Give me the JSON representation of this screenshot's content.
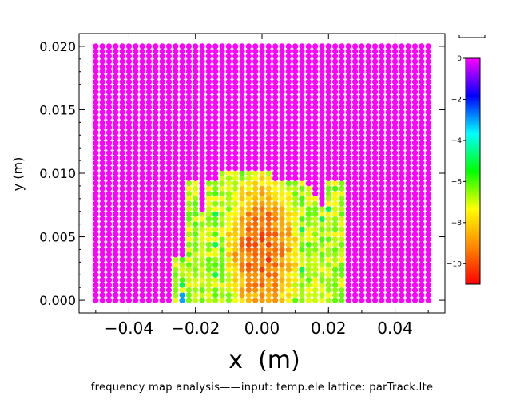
{
  "chart_data": {
    "type": "heatmap",
    "xlabel": "x  (m)",
    "ylabel": "y (m)",
    "xlim": [
      -0.055,
      0.055
    ],
    "ylim": [
      -0.001,
      0.021
    ],
    "x_ticks": [
      -0.04,
      -0.02,
      0.0,
      0.02,
      0.04
    ],
    "x_tick_labels": [
      "−0.04",
      "−0.02",
      "0.00",
      "0.02",
      "0.04"
    ],
    "y_ticks": [
      0.0,
      0.005,
      0.01,
      0.015,
      0.02
    ],
    "y_tick_labels": [
      "0.000",
      "0.005",
      "0.010",
      "0.015",
      "0.020"
    ],
    "grid": {
      "x_start": -0.05,
      "x_end": 0.05,
      "nx": 51,
      "y_start": 0.0,
      "y_end": 0.02,
      "ny": 51
    },
    "colorbar": {
      "min": -11,
      "max": 0,
      "ticks": [
        0,
        -2,
        -4,
        -6,
        -8,
        -10
      ],
      "tick_labels": [
        "0",
        "−2",
        "−4",
        "−6",
        "−8",
        "−10"
      ],
      "colors": [
        "#ff0000",
        "#ff8800",
        "#ffff00",
        "#00ff00",
        "#00ffff",
        "#0000ff",
        "#ff00ff"
      ]
    },
    "default_value": 0,
    "stable_region": {
      "columns": [
        {
          "x": -0.025,
          "y_max": 0.0035
        },
        {
          "x": -0.024,
          "y_max": 0.0035
        },
        {
          "x": -0.023,
          "y_max": 0.0035
        },
        {
          "x": -0.022,
          "y_max": 0.0095
        },
        {
          "x": -0.021,
          "y_max": 0.0095
        },
        {
          "x": -0.02,
          "y_max": 0.0095
        },
        {
          "x": -0.019,
          "y_max": 0.0095
        },
        {
          "x": -0.018,
          "y_max": 0.007
        },
        {
          "x": -0.017,
          "y_max": 0.007
        },
        {
          "x": -0.016,
          "y_max": 0.0095
        },
        {
          "x": -0.015,
          "y_max": 0.0095
        },
        {
          "x": -0.014,
          "y_max": 0.0095
        },
        {
          "x": -0.013,
          "y_max": 0.0095
        },
        {
          "x": -0.012,
          "y_max": 0.01
        },
        {
          "x": -0.011,
          "y_max": 0.01
        },
        {
          "x": -0.01,
          "y_max": 0.01
        },
        {
          "x": -0.009,
          "y_max": 0.01
        },
        {
          "x": -0.008,
          "y_max": 0.01
        },
        {
          "x": -0.007,
          "y_max": 0.01
        },
        {
          "x": -0.006,
          "y_max": 0.01
        },
        {
          "x": -0.005,
          "y_max": 0.01
        },
        {
          "x": -0.004,
          "y_max": 0.01
        },
        {
          "x": -0.003,
          "y_max": 0.01
        },
        {
          "x": -0.002,
          "y_max": 0.01
        },
        {
          "x": -0.001,
          "y_max": 0.01
        },
        {
          "x": 0.0,
          "y_max": 0.01
        },
        {
          "x": 0.001,
          "y_max": 0.01
        },
        {
          "x": 0.002,
          "y_max": 0.01
        },
        {
          "x": 0.003,
          "y_max": 0.0095
        },
        {
          "x": 0.004,
          "y_max": 0.0095
        },
        {
          "x": 0.005,
          "y_max": 0.0095
        },
        {
          "x": 0.006,
          "y_max": 0.0095
        },
        {
          "x": 0.007,
          "y_max": 0.0095
        },
        {
          "x": 0.008,
          "y_max": 0.0095
        },
        {
          "x": 0.009,
          "y_max": 0.0095
        },
        {
          "x": 0.01,
          "y_max": 0.0095
        },
        {
          "x": 0.011,
          "y_max": 0.0095
        },
        {
          "x": 0.012,
          "y_max": 0.0095
        },
        {
          "x": 0.013,
          "y_max": 0.009
        },
        {
          "x": 0.014,
          "y_max": 0.009
        },
        {
          "x": 0.015,
          "y_max": 0.0085
        },
        {
          "x": 0.016,
          "y_max": 0.008
        },
        {
          "x": 0.017,
          "y_max": 0.008
        },
        {
          "x": 0.018,
          "y_max": 0.0075
        },
        {
          "x": 0.019,
          "y_max": 0.007
        },
        {
          "x": 0.02,
          "y_max": 0.0095
        },
        {
          "x": 0.021,
          "y_max": 0.0095
        },
        {
          "x": 0.022,
          "y_max": 0.0095
        },
        {
          "x": 0.023,
          "y_max": 0.0095
        }
      ],
      "base_value": -6.8,
      "core_value": -9.8,
      "core_center": [
        0.0,
        0.004
      ]
    },
    "special_points": [
      {
        "x": -0.024,
        "y": 0.0,
        "value": -3
      },
      {
        "x": -0.024,
        "y": 0.0004,
        "value": -3
      },
      {
        "x": -0.024,
        "y": 0.0012,
        "value": -5
      },
      {
        "x": -0.024,
        "y": 0.0024,
        "value": -7
      },
      {
        "x": -0.024,
        "y": 0.0032,
        "value": -6
      },
      {
        "x": -0.022,
        "y": 0.001,
        "value": -8
      },
      {
        "x": -0.02,
        "y": 0.006,
        "value": -6
      },
      {
        "x": -0.02,
        "y": 0.0068,
        "value": -6
      },
      {
        "x": -0.018,
        "y": 0.004,
        "value": -7
      },
      {
        "x": -0.016,
        "y": 0.009,
        "value": -6
      },
      {
        "x": -0.014,
        "y": 0.002,
        "value": -5
      },
      {
        "x": -0.014,
        "y": 0.0028,
        "value": -6
      },
      {
        "x": -0.014,
        "y": 0.0044,
        "value": -5
      },
      {
        "x": -0.014,
        "y": 0.0052,
        "value": -6
      },
      {
        "x": -0.014,
        "y": 0.0068,
        "value": -5
      },
      {
        "x": -0.014,
        "y": 0.0084,
        "value": -6
      },
      {
        "x": -0.012,
        "y": 0.004,
        "value": -6
      },
      {
        "x": 0.012,
        "y": 0.0024,
        "value": -5
      },
      {
        "x": 0.012,
        "y": 0.004,
        "value": -6
      },
      {
        "x": 0.012,
        "y": 0.0056,
        "value": -5
      },
      {
        "x": 0.012,
        "y": 0.0064,
        "value": -6
      },
      {
        "x": 0.012,
        "y": 0.008,
        "value": -6
      },
      {
        "x": 0.014,
        "y": 0.0044,
        "value": -6
      },
      {
        "x": 0.018,
        "y": 0.0048,
        "value": -6
      },
      {
        "x": 0.018,
        "y": 0.0064,
        "value": -5
      },
      {
        "x": 0.02,
        "y": 0.0072,
        "value": -5
      },
      {
        "x": 0.022,
        "y": 0.0088,
        "value": -6
      },
      {
        "x": 0.022,
        "y": 0.0096,
        "value": -6
      },
      {
        "x": -0.024,
        "y": 0.0016,
        "value": -6
      }
    ]
  },
  "footer": {
    "text": "frequency map analysis——input: temp.ele   lattice: parTrack.lte"
  }
}
